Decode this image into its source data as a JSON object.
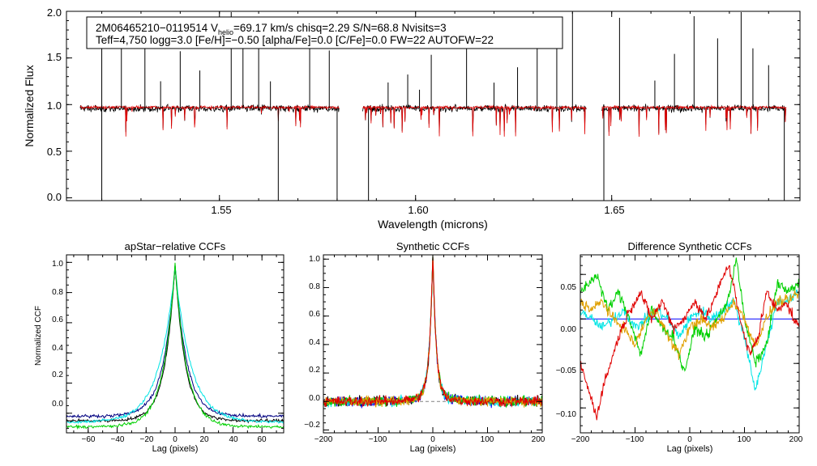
{
  "colors": {
    "axis": "#000000",
    "observed": "#000000",
    "model": "#e00000",
    "dashed": "#808080",
    "series": [
      "#000080",
      "#0000ff",
      "#00e5e5",
      "#00d000",
      "#e0a000",
      "#e00000",
      "#888888"
    ]
  },
  "chart_data": [
    {
      "type": "line",
      "title": "",
      "xlabel": "Wavelength (microns)",
      "ylabel": "Normalized Flux",
      "xlim": [
        1.511,
        1.698
      ],
      "ylim": [
        -0.03,
        2.0
      ],
      "xticks": [
        1.55,
        1.6,
        1.65
      ],
      "xtick_labels": [
        "1.55",
        "1.60",
        "1.65"
      ],
      "yticks": [
        0.0,
        0.5,
        1.0,
        1.5,
        2.0
      ],
      "ytick_labels": [
        "0.0",
        "0.5",
        "1.0",
        "1.5",
        "2.0"
      ],
      "segments": [
        [
          1.5145,
          1.5805
        ],
        [
          1.5865,
          1.6435
        ],
        [
          1.6475,
          1.6945
        ]
      ],
      "series": [
        {
          "name": "observed spectrum",
          "color": "#000000",
          "continuum": 0.96
        },
        {
          "name": "model spectrum",
          "color": "#e00000",
          "continuum": 0.97
        }
      ],
      "emission_spikes": [
        1.52,
        1.525,
        1.531,
        1.535,
        1.54,
        1.545,
        1.553,
        1.556,
        1.56,
        1.563,
        1.573,
        1.578,
        1.593,
        1.598,
        1.601,
        1.604,
        1.613,
        1.62,
        1.626,
        1.631,
        1.636,
        1.64,
        1.652,
        1.661,
        1.666,
        1.671,
        1.677,
        1.683,
        1.686,
        1.69
      ],
      "absorption_features": [
        1.52,
        1.565,
        1.58,
        1.588,
        1.648,
        1.694
      ],
      "annotation": {
        "line1_prefix": "2M06465210−0119514  V",
        "line1_sub": "helio",
        "line1_suffix": "=69.17 km/s  chisq=2.29  S/N=68.8  Nvisits=3",
        "line2": "Teff=4,750 logg=3.0 [Fe/H]=−0.50 [alpha/Fe]=0.0 [C/Fe]=0.0 FW=22 AUTOFW=22"
      }
    },
    {
      "type": "line",
      "title": "apStar−relative CCFs",
      "xlabel": "Lag (pixels)",
      "ylabel": "Normalized CCF",
      "xlim": [
        -75,
        75
      ],
      "ylim": [
        -0.13,
        1.05
      ],
      "xticks": [
        -60,
        -40,
        -20,
        0,
        20,
        40,
        60
      ],
      "xtick_labels": [
        "−60",
        "−40",
        "−20",
        "0",
        "20",
        "40",
        "60"
      ],
      "yticks": [
        0.0,
        0.2,
        0.4,
        0.6,
        0.8,
        1.0
      ],
      "ytick_labels": [
        "0.0",
        "0.2",
        "0.4",
        "0.6",
        "0.8",
        "1.0"
      ],
      "series": [
        {
          "name": "ccf-1",
          "color": "#000080",
          "peak": 0.98,
          "width": 8,
          "floor": -0.02
        },
        {
          "name": "ccf-2",
          "color": "#000000",
          "peak": 0.99,
          "width": 7,
          "floor": -0.05
        },
        {
          "name": "ccf-3",
          "color": "#00e5e5",
          "peak": 0.97,
          "width": 11,
          "floor": -0.06
        },
        {
          "name": "ccf-4",
          "color": "#00d000",
          "peak": 0.99,
          "width": 8,
          "floor": -0.09
        }
      ]
    },
    {
      "type": "line",
      "title": "Synthetic CCFs",
      "xlabel": "Lag (pixels)",
      "ylabel": "",
      "xlim": [
        -200,
        200
      ],
      "ylim": [
        -0.22,
        1.03
      ],
      "xticks": [
        -200,
        -100,
        0,
        100,
        200
      ],
      "xtick_labels": [
        "−200",
        "−100",
        "0",
        "100",
        "200"
      ],
      "yticks": [
        -0.2,
        0.0,
        0.2,
        0.4,
        0.6,
        0.8,
        1.0
      ],
      "ytick_labels": [
        "−0.2",
        "0.0",
        "0.2",
        "0.4",
        "0.6",
        "0.8",
        "1.0"
      ],
      "reference_line": {
        "y": 0.0,
        "style": "dashed"
      },
      "series": [
        {
          "name": "synth-1",
          "color": "#000000",
          "peak": 1.0,
          "width": 6
        },
        {
          "name": "synth-2",
          "color": "#0000ff",
          "peak": 1.0,
          "width": 6
        },
        {
          "name": "synth-3",
          "color": "#00e5e5",
          "peak": 1.0,
          "width": 6
        },
        {
          "name": "synth-4",
          "color": "#00d000",
          "peak": 1.0,
          "width": 6
        },
        {
          "name": "synth-5",
          "color": "#e0a000",
          "peak": 1.0,
          "width": 6
        },
        {
          "name": "synth-6",
          "color": "#e00000",
          "peak": 1.0,
          "width": 6
        }
      ]
    },
    {
      "type": "line",
      "title": "Difference Synthetic CCFs",
      "xlabel": "Lag (pixels)",
      "ylabel": "",
      "xlim": [
        -200,
        200
      ],
      "ylim": [
        -0.128,
        0.072
      ],
      "xticks": [
        -200,
        -100,
        0,
        100,
        200
      ],
      "xtick_labels": [
        "−200",
        "−100",
        "0",
        "100",
        "200"
      ],
      "yticks": [
        -0.1,
        -0.05,
        0.0,
        0.05
      ],
      "ytick_labels": [
        "−0.10",
        "−0.05",
        "0.00",
        "0.05"
      ],
      "series": [
        {
          "name": "diff-1",
          "color": "#0000ff",
          "constant": 0.0
        },
        {
          "name": "diff-2",
          "color": "#00e5e5",
          "keys": [
            [
              -200,
              0.01
            ],
            [
              -180,
              0.0
            ],
            [
              -160,
              -0.01
            ],
            [
              -140,
              0.0
            ],
            [
              -120,
              0.01
            ],
            [
              -100,
              -0.01
            ],
            [
              -80,
              0.0
            ],
            [
              -60,
              0.01
            ],
            [
              -40,
              0.0
            ],
            [
              -20,
              -0.02
            ],
            [
              0,
              0.0
            ],
            [
              20,
              0.01
            ],
            [
              40,
              0.0
            ],
            [
              60,
              0.01
            ],
            [
              80,
              0.02
            ],
            [
              100,
              -0.02
            ],
            [
              120,
              -0.08
            ],
            [
              140,
              -0.03
            ],
            [
              160,
              0.02
            ],
            [
              180,
              0.02
            ],
            [
              200,
              0.03
            ]
          ]
        },
        {
          "name": "diff-3",
          "color": "#00d000",
          "keys": [
            [
              -200,
              0.03
            ],
            [
              -185,
              0.04
            ],
            [
              -170,
              0.05
            ],
            [
              -150,
              0.01
            ],
            [
              -130,
              0.03
            ],
            [
              -110,
              0.0
            ],
            [
              -90,
              -0.04
            ],
            [
              -70,
              0.01
            ],
            [
              -50,
              -0.01
            ],
            [
              -30,
              -0.02
            ],
            [
              -10,
              -0.06
            ],
            [
              10,
              -0.01
            ],
            [
              30,
              -0.02
            ],
            [
              50,
              0.0
            ],
            [
              70,
              0.02
            ],
            [
              85,
              0.07
            ],
            [
              100,
              0.0
            ],
            [
              120,
              -0.05
            ],
            [
              140,
              -0.03
            ],
            [
              160,
              0.04
            ],
            [
              180,
              0.03
            ],
            [
              200,
              0.04
            ]
          ]
        },
        {
          "name": "diff-4",
          "color": "#e0a000",
          "keys": [
            [
              -200,
              0.02
            ],
            [
              -180,
              0.01
            ],
            [
              -160,
              0.02
            ],
            [
              -140,
              0.0
            ],
            [
              -120,
              -0.01
            ],
            [
              -100,
              -0.03
            ],
            [
              -80,
              0.0
            ],
            [
              -60,
              0.01
            ],
            [
              -40,
              -0.02
            ],
            [
              -20,
              -0.04
            ],
            [
              0,
              -0.01
            ],
            [
              20,
              0.0
            ],
            [
              40,
              -0.01
            ],
            [
              60,
              0.0
            ],
            [
              80,
              0.02
            ],
            [
              100,
              0.0
            ],
            [
              120,
              -0.03
            ],
            [
              140,
              0.0
            ],
            [
              160,
              0.02
            ],
            [
              180,
              0.02
            ],
            [
              200,
              0.03
            ]
          ]
        },
        {
          "name": "diff-5",
          "color": "#e00000",
          "keys": [
            [
              -200,
              -0.05
            ],
            [
              -190,
              -0.07
            ],
            [
              -180,
              -0.09
            ],
            [
              -170,
              -0.11
            ],
            [
              -160,
              -0.08
            ],
            [
              -145,
              -0.05
            ],
            [
              -130,
              -0.02
            ],
            [
              -110,
              0.01
            ],
            [
              -90,
              0.03
            ],
            [
              -70,
              0.0
            ],
            [
              -50,
              0.02
            ],
            [
              -30,
              -0.01
            ],
            [
              -10,
              0.0
            ],
            [
              10,
              0.02
            ],
            [
              30,
              0.0
            ],
            [
              50,
              0.03
            ],
            [
              70,
              0.06
            ],
            [
              80,
              0.04
            ],
            [
              95,
              -0.01
            ],
            [
              110,
              -0.04
            ],
            [
              125,
              -0.02
            ],
            [
              140,
              0.03
            ],
            [
              160,
              0.01
            ],
            [
              175,
              0.02
            ],
            [
              190,
              0.0
            ],
            [
              200,
              -0.01
            ]
          ]
        }
      ]
    }
  ]
}
